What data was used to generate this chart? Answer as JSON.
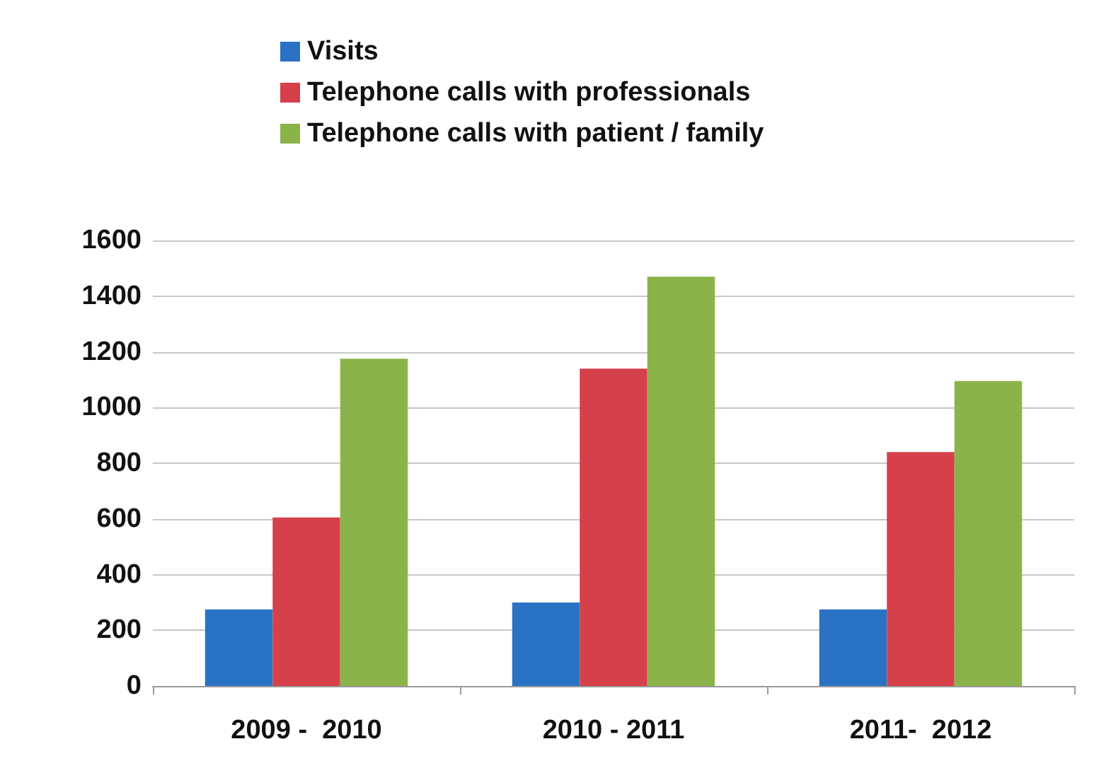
{
  "chart_data": {
    "type": "bar",
    "categories": [
      "2009 -  2010",
      "2010 - 2011",
      "2011-  2012"
    ],
    "series": [
      {
        "name": "Visits",
        "color": "#2a72c4",
        "values": [
          275,
          300,
          275
        ]
      },
      {
        "name": "Telephone calls with professionals",
        "color": "#d6404a",
        "values": [
          605,
          1140,
          840
        ]
      },
      {
        "name": "Telephone calls with patient / family",
        "color": "#8ab449",
        "values": [
          1175,
          1470,
          1095
        ]
      }
    ],
    "ylim": [
      0,
      1600
    ],
    "yticks": [
      0,
      200,
      400,
      600,
      800,
      1000,
      1200,
      1400,
      1600
    ],
    "grid": "y",
    "legend": "top"
  }
}
